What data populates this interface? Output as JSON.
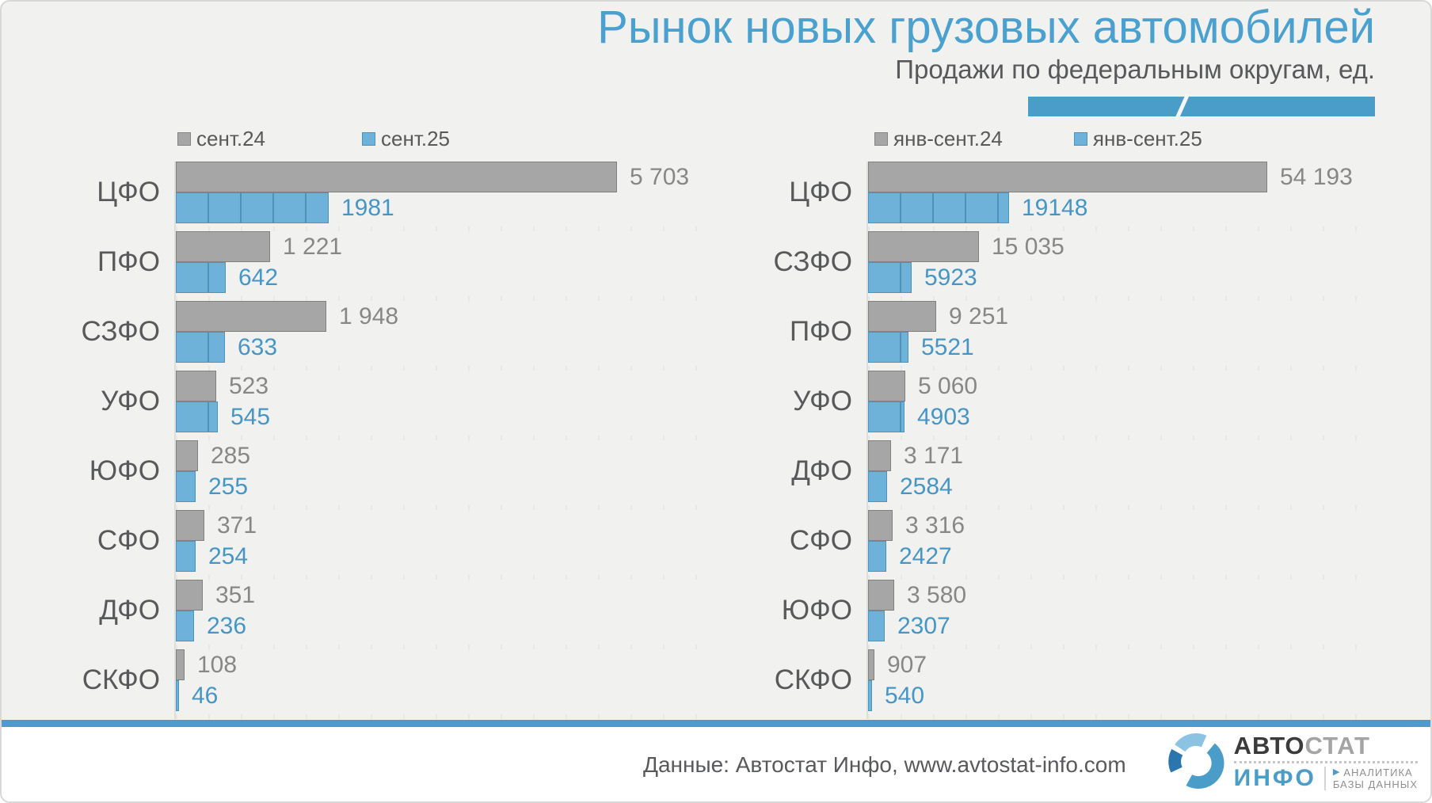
{
  "slide": {
    "title": "Рынок новых грузовых автомобилей",
    "subtitle": "Продажи по федеральным округам, ед.",
    "footer": {
      "source_text": "Данные: Автостат Инфо, www.avtostat-info.com"
    },
    "logo": {
      "brand_part1": "АВТО",
      "brand_part2": "СТАТ",
      "brand_sub": "ИНФО",
      "tagline_line1": "АНАЛИТИКА",
      "tagline_line2": "БАЗЫ ДАННЫХ",
      "triangle_icon": "▶"
    }
  },
  "colors": {
    "accent_blue": "#4a9cc9",
    "bar_blue_fill": "#6fb2d9",
    "bar_blue_border": "#4a94c4",
    "bar_gray_fill": "#a6a6a6",
    "bar_gray_border": "#818181",
    "title_blue": "#4aa0ce",
    "text_dark": "#58595b",
    "value_gray": "#878787",
    "value_blue": "#4596c7"
  },
  "chart_data": [
    {
      "type": "bar",
      "orientation": "horizontal",
      "title": "",
      "legend_position": "top",
      "grid": false,
      "xlim": [
        0,
        5703
      ],
      "categories": [
        "ЦФО",
        "ПФО",
        "СЗФО",
        "УФО",
        "ЮФО",
        "СФО",
        "ДФО",
        "СКФО"
      ],
      "series": [
        {
          "name": "сент.24",
          "color": "gray",
          "values": [
            5703,
            1221,
            1948,
            523,
            285,
            371,
            351,
            108
          ],
          "labels": [
            "5 703",
            "1 221",
            "1 948",
            "523",
            "285",
            "371",
            "351",
            "108"
          ]
        },
        {
          "name": "сент.25",
          "color": "blue",
          "values": [
            1981,
            642,
            633,
            545,
            255,
            254,
            236,
            46
          ],
          "labels": [
            "1981",
            "642",
            "633",
            "545",
            "255",
            "254",
            "236",
            "46"
          ]
        }
      ]
    },
    {
      "type": "bar",
      "orientation": "horizontal",
      "title": "",
      "legend_position": "top",
      "grid": false,
      "xlim": [
        0,
        54193
      ],
      "categories": [
        "ЦФО",
        "СЗФО",
        "ПФО",
        "УФО",
        "ДФО",
        "СФО",
        "ЮФО",
        "СКФО"
      ],
      "series": [
        {
          "name": "янв-сент.24",
          "color": "gray",
          "values": [
            54193,
            15035,
            9251,
            5060,
            3171,
            3316,
            3580,
            907
          ],
          "labels": [
            "54 193",
            "15 035",
            "9 251",
            "5 060",
            "3 171",
            "3 316",
            "3 580",
            "907"
          ]
        },
        {
          "name": "янв-сент.25",
          "color": "blue",
          "values": [
            19148,
            5923,
            5521,
            4903,
            2584,
            2427,
            2307,
            540
          ],
          "labels": [
            "19148",
            "5923",
            "5521",
            "4903",
            "2584",
            "2427",
            "2307",
            "540"
          ]
        }
      ]
    }
  ]
}
